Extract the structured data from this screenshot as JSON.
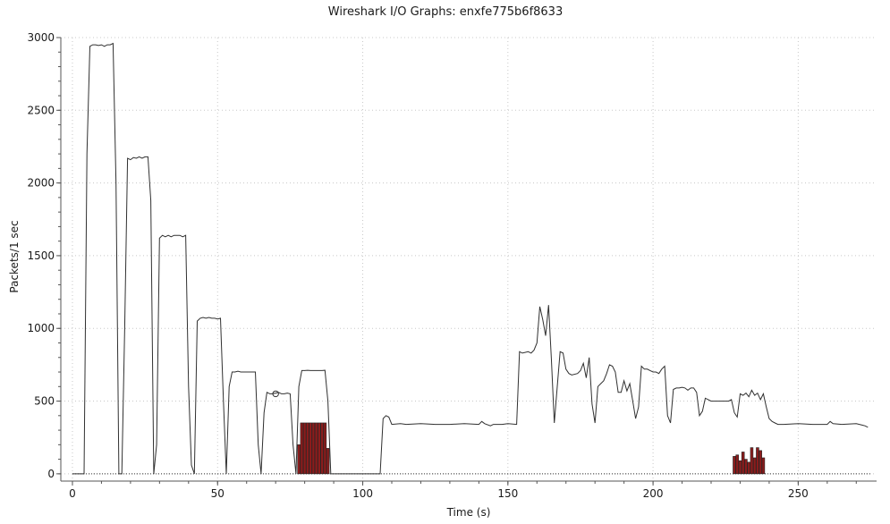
{
  "window": {
    "title": "Wireshark I/O Graphs: enxfe775b6f8633"
  },
  "chart_data": {
    "type": "line",
    "title": "Wireshark I/O Graphs: enxfe775b6f8633",
    "xlabel": "Time (s)",
    "ylabel": "Packets/1 sec",
    "xlim": [
      -4,
      277
    ],
    "ylim": [
      -50,
      3000
    ],
    "xticks": [
      0,
      50,
      100,
      150,
      200,
      250
    ],
    "yticks": [
      0,
      500,
      1000,
      1500,
      2000,
      2500,
      3000
    ],
    "grid": true,
    "colors": {
      "line": "#303030",
      "bars": "#8b1c1c",
      "bar_edge": "#222222",
      "grid": "#c8c8c8",
      "axis": "#555555"
    },
    "series": [
      {
        "type": "line",
        "points": [
          [
            0,
            0
          ],
          [
            4,
            0
          ],
          [
            5,
            2200
          ],
          [
            6,
            2940
          ],
          [
            7,
            2950
          ],
          [
            8,
            2950
          ],
          [
            9,
            2945
          ],
          [
            10,
            2950
          ],
          [
            11,
            2940
          ],
          [
            12,
            2950
          ],
          [
            13,
            2950
          ],
          [
            14,
            2960
          ],
          [
            15,
            2000
          ],
          [
            16,
            0
          ],
          [
            17,
            0
          ],
          [
            18,
            1000
          ],
          [
            19,
            2170
          ],
          [
            20,
            2160
          ],
          [
            21,
            2175
          ],
          [
            22,
            2170
          ],
          [
            23,
            2180
          ],
          [
            24,
            2170
          ],
          [
            25,
            2180
          ],
          [
            26,
            2180
          ],
          [
            27,
            1880
          ],
          [
            28,
            0
          ],
          [
            29,
            200
          ],
          [
            30,
            1620
          ],
          [
            31,
            1640
          ],
          [
            32,
            1630
          ],
          [
            33,
            1640
          ],
          [
            34,
            1630
          ],
          [
            35,
            1640
          ],
          [
            36,
            1640
          ],
          [
            37,
            1640
          ],
          [
            38,
            1630
          ],
          [
            39,
            1640
          ],
          [
            40,
            600
          ],
          [
            41,
            60
          ],
          [
            42,
            0
          ],
          [
            43,
            1050
          ],
          [
            44,
            1070
          ],
          [
            45,
            1075
          ],
          [
            46,
            1070
          ],
          [
            47,
            1075
          ],
          [
            48,
            1070
          ],
          [
            49,
            1070
          ],
          [
            50,
            1065
          ],
          [
            51,
            1070
          ],
          [
            52,
            500
          ],
          [
            53,
            0
          ],
          [
            54,
            600
          ],
          [
            55,
            700
          ],
          [
            56,
            700
          ],
          [
            57,
            705
          ],
          [
            58,
            700
          ],
          [
            59,
            700
          ],
          [
            60,
            700
          ],
          [
            61,
            700
          ],
          [
            62,
            700
          ],
          [
            63,
            700
          ],
          [
            64,
            200
          ],
          [
            65,
            0
          ],
          [
            66,
            420
          ],
          [
            67,
            560
          ],
          [
            68,
            550
          ],
          [
            69,
            550
          ],
          [
            70,
            555
          ],
          [
            71,
            560
          ],
          [
            72,
            550
          ],
          [
            73,
            550
          ],
          [
            74,
            555
          ],
          [
            75,
            550
          ],
          [
            76,
            200
          ],
          [
            77,
            0
          ],
          [
            78,
            600
          ],
          [
            79,
            710
          ],
          [
            80,
            710
          ],
          [
            81,
            712
          ],
          [
            82,
            710
          ],
          [
            83,
            710
          ],
          [
            84,
            710
          ],
          [
            85,
            710
          ],
          [
            86,
            710
          ],
          [
            87,
            712
          ],
          [
            88,
            500
          ],
          [
            89,
            0
          ],
          [
            100,
            0
          ],
          [
            106,
            0
          ],
          [
            107,
            380
          ],
          [
            108,
            400
          ],
          [
            109,
            390
          ],
          [
            110,
            340
          ],
          [
            113,
            345
          ],
          [
            115,
            340
          ],
          [
            120,
            345
          ],
          [
            125,
            340
          ],
          [
            130,
            340
          ],
          [
            135,
            345
          ],
          [
            140,
            340
          ],
          [
            141,
            360
          ],
          [
            142,
            345
          ],
          [
            144,
            330
          ],
          [
            145,
            340
          ],
          [
            148,
            340
          ],
          [
            150,
            345
          ],
          [
            153,
            340
          ],
          [
            154,
            840
          ],
          [
            155,
            830
          ],
          [
            157,
            840
          ],
          [
            158,
            830
          ],
          [
            159,
            850
          ],
          [
            160,
            900
          ],
          [
            161,
            1150
          ],
          [
            162,
            1060
          ],
          [
            163,
            950
          ],
          [
            164,
            1160
          ],
          [
            165,
            780
          ],
          [
            166,
            350
          ],
          [
            167,
            600
          ],
          [
            168,
            840
          ],
          [
            169,
            830
          ],
          [
            170,
            720
          ],
          [
            171,
            690
          ],
          [
            172,
            680
          ],
          [
            174,
            690
          ],
          [
            175,
            710
          ],
          [
            176,
            760
          ],
          [
            177,
            660
          ],
          [
            178,
            800
          ],
          [
            179,
            480
          ],
          [
            180,
            350
          ],
          [
            181,
            600
          ],
          [
            182,
            620
          ],
          [
            183,
            640
          ],
          [
            184,
            690
          ],
          [
            185,
            750
          ],
          [
            186,
            740
          ],
          [
            187,
            700
          ],
          [
            188,
            560
          ],
          [
            189,
            560
          ],
          [
            190,
            640
          ],
          [
            191,
            570
          ],
          [
            192,
            620
          ],
          [
            193,
            500
          ],
          [
            194,
            380
          ],
          [
            195,
            460
          ],
          [
            196,
            740
          ],
          [
            197,
            720
          ],
          [
            198,
            720
          ],
          [
            199,
            710
          ],
          [
            200,
            700
          ],
          [
            201,
            700
          ],
          [
            202,
            690
          ],
          [
            203,
            720
          ],
          [
            204,
            740
          ],
          [
            205,
            400
          ],
          [
            206,
            350
          ],
          [
            207,
            580
          ],
          [
            208,
            590
          ],
          [
            209,
            590
          ],
          [
            210,
            595
          ],
          [
            211,
            590
          ],
          [
            212,
            575
          ],
          [
            213,
            590
          ],
          [
            214,
            590
          ],
          [
            215,
            560
          ],
          [
            216,
            400
          ],
          [
            217,
            430
          ],
          [
            218,
            520
          ],
          [
            219,
            510
          ],
          [
            220,
            500
          ],
          [
            221,
            500
          ],
          [
            223,
            500
          ],
          [
            226,
            500
          ],
          [
            227,
            510
          ],
          [
            228,
            420
          ],
          [
            229,
            390
          ],
          [
            230,
            550
          ],
          [
            231,
            540
          ],
          [
            232,
            555
          ],
          [
            233,
            530
          ],
          [
            234,
            575
          ],
          [
            235,
            540
          ],
          [
            236,
            555
          ],
          [
            237,
            510
          ],
          [
            238,
            550
          ],
          [
            239,
            460
          ],
          [
            240,
            380
          ],
          [
            241,
            360
          ],
          [
            242,
            350
          ],
          [
            243,
            340
          ],
          [
            245,
            340
          ],
          [
            250,
            345
          ],
          [
            255,
            340
          ],
          [
            260,
            340
          ],
          [
            261,
            360
          ],
          [
            262,
            345
          ],
          [
            265,
            340
          ],
          [
            270,
            345
          ],
          [
            272,
            335
          ],
          [
            273,
            330
          ],
          [
            274,
            320
          ]
        ]
      },
      {
        "type": "line",
        "style": "dotted",
        "points": [
          [
            0,
            0
          ],
          [
            275,
            0
          ]
        ]
      },
      {
        "type": "bar",
        "x": [
          78,
          79,
          80,
          81,
          82,
          83,
          84,
          85,
          86,
          87,
          88,
          228,
          229,
          230,
          231,
          232,
          233,
          234,
          235,
          236,
          237,
          238
        ],
        "values": [
          200,
          350,
          350,
          350,
          350,
          350,
          350,
          350,
          350,
          350,
          175,
          120,
          130,
          90,
          150,
          100,
          80,
          180,
          110,
          180,
          160,
          110
        ]
      },
      {
        "type": "marker",
        "points": [
          [
            70,
            550
          ]
        ]
      }
    ]
  }
}
